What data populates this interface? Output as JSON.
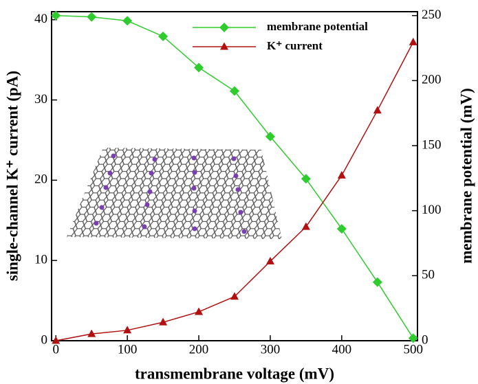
{
  "chart_data": {
    "type": "line",
    "x_label": "transmembrane voltage (mV)",
    "y_label": "single-channel K⁺ current (pA)",
    "y2_label": "membrane potential (mV)",
    "x": [
      0,
      50,
      100,
      150,
      200,
      250,
      300,
      350,
      400,
      450,
      500
    ],
    "series": [
      {
        "name": "membrane potential",
        "color": "#2ecc2e",
        "marker": "diamond",
        "axis": "y2",
        "values": [
          250,
          249,
          246,
          234,
          210,
          192,
          157,
          124.5,
          86,
          45,
          2
        ]
      },
      {
        "name": "K⁺ current",
        "color": "#b01010",
        "marker": "triangle",
        "values": [
          0,
          0.85,
          1.3,
          2.3,
          3.6,
          5.5,
          9.9,
          14.2,
          20.6,
          28.7,
          37.2
        ]
      }
    ],
    "xlim": [
      -6,
      506
    ],
    "xticks": [
      0,
      100,
      200,
      300,
      400,
      500
    ],
    "ylim": [
      0,
      41
    ],
    "yticks": [
      0,
      10,
      20,
      30,
      40
    ],
    "y2lim": [
      0,
      253
    ],
    "y2ticks": [
      0,
      50,
      100,
      150,
      200,
      250
    ],
    "legend": "top"
  }
}
